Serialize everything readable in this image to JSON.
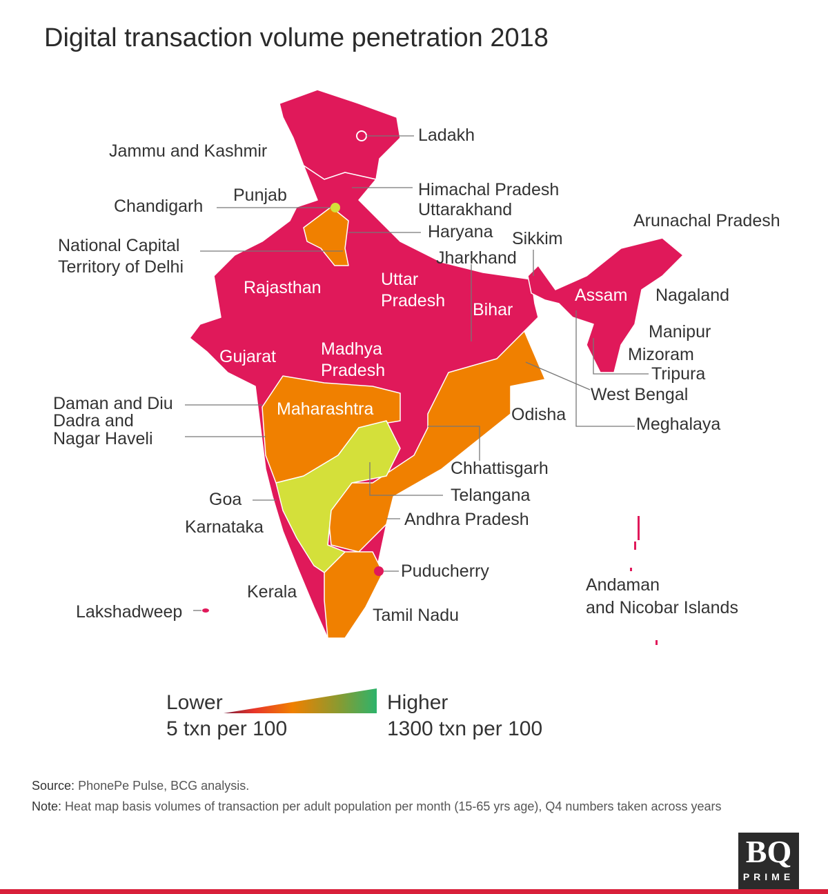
{
  "title": "Digital transaction volume penetration 2018",
  "colors": {
    "low_pink": "#e0195a",
    "mid_orange": "#f08000",
    "upper_yellow": "#d4e03a",
    "high_green": "#2db36b",
    "brand_bar": "#d8203a"
  },
  "labels": {
    "ladakh": "Ladakh",
    "jk": "Jammu and Kashmir",
    "punjab": "Punjab",
    "chandigarh": "Chandigarh",
    "himachal": "Himachal Pradesh",
    "uttarakhand": "Uttarakhand",
    "haryana": "Haryana",
    "delhi_1": "National Capital",
    "delhi_2": "Territory of Delhi",
    "arunachal": "Arunachal Pradesh",
    "sikkim": "Sikkim",
    "jharkhand": "Jharkhand",
    "rajasthan": "Rajasthan",
    "up_1": "Uttar",
    "up_2": "Pradesh",
    "bihar": "Bihar",
    "assam": "Assam",
    "nagaland": "Nagaland",
    "manipur": "Manipur",
    "mizoram": "Mizoram",
    "tripura": "Tripura",
    "gujarat": "Gujarat",
    "mp_1": "Madhya",
    "mp_2": "Pradesh",
    "westbengal": "West Bengal",
    "daman": "Daman and Diu",
    "dadra_1": "Dadra and",
    "dadra_2": "Nagar Haveli",
    "maharashtra": "Maharashtra",
    "odisha": "Odisha",
    "meghalaya": "Meghalaya",
    "chhattisgarh": "Chhattisgarh",
    "telangana": "Telangana",
    "goa": "Goa",
    "karnataka": "Karnataka",
    "andhra": "Andhra Pradesh",
    "puducherry": "Puducherry",
    "kerala": "Kerala",
    "andaman_1": "Andaman",
    "andaman_2": "and Nicobar Islands",
    "lakshadweep": "Lakshadweep",
    "tamilnadu": "Tamil Nadu"
  },
  "legend": {
    "low_label": "Lower",
    "low_value": "5 txn per 100",
    "high_label": "Higher",
    "high_value": "1300 txn per 100"
  },
  "footer": {
    "source_label": "Source:",
    "source_text": "PhonePe Pulse, BCG analysis.",
    "note_label": "Note:",
    "note_text": "Heat map basis volumes of transaction per adult population per month (15-65 yrs age), Q4 numbers taken across years"
  },
  "logo": {
    "top": "BQ",
    "bottom": "PRIME"
  }
}
